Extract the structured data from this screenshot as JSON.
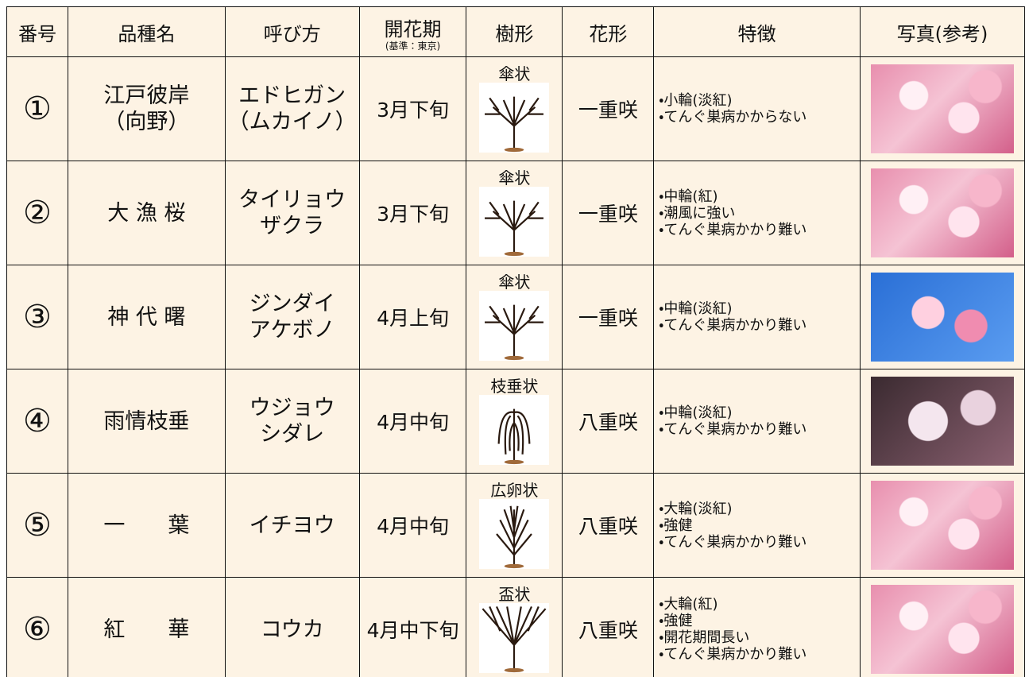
{
  "table": {
    "header": [
      "番号",
      "品種名",
      "呼び方",
      "開花期",
      "(基準：東京)",
      "樹形",
      "花形",
      "特徴",
      "写真(参考)"
    ],
    "rows": [
      {
        "number": "①",
        "name": [
          "江戸彼岸",
          "（向野）"
        ],
        "reading": [
          "エドヒガン",
          "（ムカイノ）"
        ],
        "bloom": "3月下旬",
        "shape": "傘状",
        "flower": "一重咲",
        "features": [
          "・小輪(淡紅)",
          "・てんぐ巣病かからない"
        ]
      },
      {
        "number": "②",
        "name": [
          "大 漁 桜"
        ],
        "reading": [
          "タイリョウ",
          "ザクラ"
        ],
        "bloom": "3月下旬",
        "shape": "傘状",
        "flower": "一重咲",
        "features": [
          "・中輪(紅)",
          "・潮風に強い",
          "・てんぐ巣病かかり難い"
        ]
      },
      {
        "number": "③",
        "name": [
          "神 代 曙"
        ],
        "reading": [
          "ジンダイ",
          "アケボノ"
        ],
        "bloom": "4月上旬",
        "shape": "傘状",
        "flower": "一重咲",
        "features": [
          "・中輪(淡紅)",
          "・てんぐ巣病かかり難い"
        ]
      },
      {
        "number": "④",
        "name": [
          "雨情枝垂"
        ],
        "reading": [
          "ウジョウ",
          "シダレ"
        ],
        "bloom": "4月中旬",
        "shape": "枝垂状",
        "flower": "八重咲",
        "features": [
          "・中輪(淡紅)",
          "・てんぐ巣病かかり難い"
        ]
      },
      {
        "number": "⑤",
        "name": [
          "一　　葉"
        ],
        "reading": [
          "イチヨウ"
        ],
        "bloom": "4月中旬",
        "shape": "広卵状",
        "flower": "八重咲",
        "features": [
          "・大輪(淡紅)",
          "・強健",
          "・てんぐ巣病かかり難い"
        ]
      },
      {
        "number": "⑥",
        "name": [
          "紅　　華"
        ],
        "reading": [
          "コウカ"
        ],
        "bloom": "4月中下旬",
        "shape": "盃状",
        "flower": "八重咲",
        "features": [
          "・大輪(紅)",
          "・強健",
          "・開花期間長い",
          "・てんぐ巣病かかり難い"
        ]
      }
    ]
  }
}
